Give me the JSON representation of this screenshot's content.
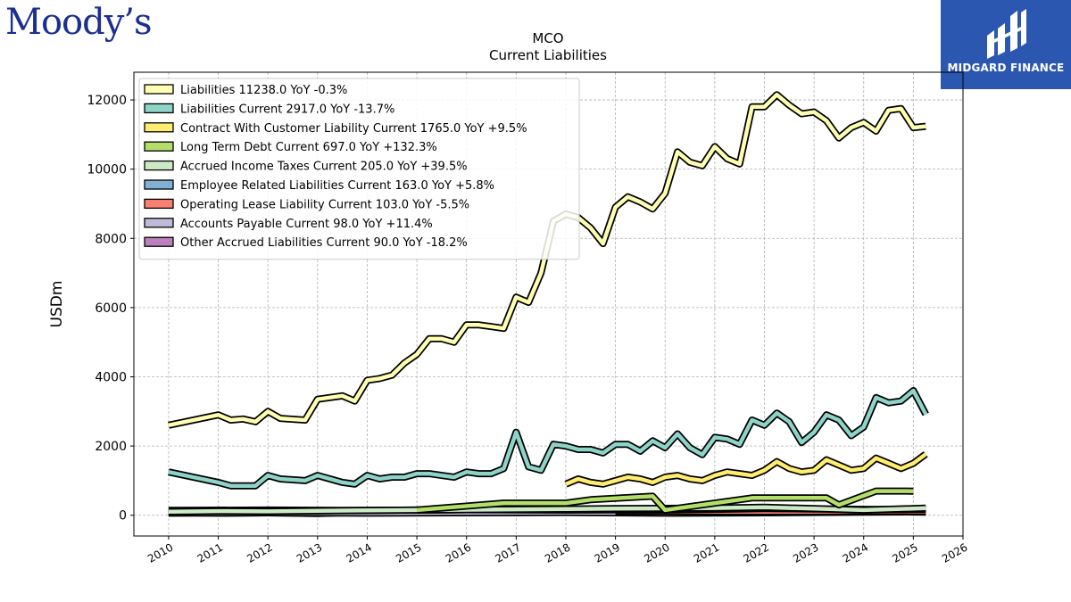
{
  "brand": {
    "left_logo": "Moody’s",
    "right_logo": "MIDGARD FINANCE",
    "accent": "#2c57b0",
    "left_logo_color": "#1a2f8f"
  },
  "chart_data": {
    "type": "line",
    "title": "MCO",
    "subtitle": "Current  Liabilities",
    "ylabel": "USDm",
    "xlabel": "",
    "xlim": [
      2009.3,
      2026.0
    ],
    "ylim": [
      -600,
      12800
    ],
    "xticks": [
      "2010",
      "2011",
      "2012",
      "2013",
      "2014",
      "2015",
      "2016",
      "2017",
      "2018",
      "2019",
      "2020",
      "2021",
      "2022",
      "2023",
      "2024",
      "2025",
      "2026"
    ],
    "yticks": [
      "0",
      "2000",
      "4000",
      "6000",
      "8000",
      "10000",
      "12000"
    ],
    "grid": true,
    "legend_position": "top-left",
    "series": [
      {
        "name": "Liabilities",
        "legend": "Liabilities  11238.0 YoY -0.3%",
        "color": "#ffffb3",
        "x": [
          2010.0,
          2011.0,
          2011.25,
          2011.5,
          2011.75,
          2012.0,
          2012.25,
          2012.75,
          2013.0,
          2013.5,
          2013.75,
          2014.0,
          2014.25,
          2014.5,
          2014.75,
          2015.0,
          2015.25,
          2015.5,
          2015.75,
          2016.0,
          2016.25,
          2016.5,
          2016.75,
          2017.0,
          2017.25,
          2017.5,
          2017.75,
          2018.0,
          2018.25,
          2018.5,
          2018.75,
          2019.0,
          2019.25,
          2019.5,
          2019.75,
          2020.0,
          2020.25,
          2020.5,
          2020.75,
          2021.0,
          2021.25,
          2021.5,
          2021.75,
          2022.0,
          2022.25,
          2022.5,
          2022.75,
          2023.0,
          2023.25,
          2023.5,
          2023.75,
          2024.0,
          2024.25,
          2024.5,
          2024.75,
          2025.0,
          2025.25
        ],
        "values": [
          2600,
          2900,
          2750,
          2780,
          2700,
          3000,
          2800,
          2750,
          3350,
          3450,
          3300,
          3900,
          3950,
          4050,
          4400,
          4650,
          5100,
          5100,
          5000,
          5500,
          5500,
          5450,
          5400,
          6300,
          6150,
          7000,
          8500,
          8700,
          8600,
          8300,
          7850,
          8900,
          9200,
          9050,
          8850,
          9300,
          10500,
          10200,
          10100,
          10650,
          10300,
          10150,
          11800,
          11800,
          12150,
          11850,
          11600,
          11650,
          11400,
          10900,
          11200,
          11350,
          11100,
          11700,
          11750,
          11200,
          11238
        ]
      },
      {
        "name": "Liabilities Current",
        "legend": "Liabilities Current  2917.0 YoY -13.7%",
        "color": "#8dd3c7",
        "x": [
          2010.0,
          2011.0,
          2011.25,
          2011.5,
          2011.75,
          2012.0,
          2012.25,
          2012.75,
          2013.0,
          2013.5,
          2013.75,
          2014.0,
          2014.25,
          2014.5,
          2014.75,
          2015.0,
          2015.25,
          2015.5,
          2015.75,
          2016.0,
          2016.25,
          2016.5,
          2016.75,
          2017.0,
          2017.25,
          2017.5,
          2017.75,
          2018.0,
          2018.25,
          2018.5,
          2018.75,
          2019.0,
          2019.25,
          2019.5,
          2019.75,
          2020.0,
          2020.25,
          2020.5,
          2020.75,
          2021.0,
          2021.25,
          2021.5,
          2021.75,
          2022.0,
          2022.25,
          2022.5,
          2022.75,
          2023.0,
          2023.25,
          2023.5,
          2023.75,
          2024.0,
          2024.25,
          2024.5,
          2024.75,
          2025.0,
          2025.25
        ],
        "values": [
          1250,
          950,
          850,
          850,
          850,
          1150,
          1050,
          1000,
          1150,
          950,
          900,
          1150,
          1050,
          1100,
          1100,
          1200,
          1200,
          1150,
          1100,
          1250,
          1200,
          1200,
          1350,
          2400,
          1400,
          1300,
          2050,
          2000,
          1900,
          1900,
          1800,
          2050,
          2050,
          1850,
          2150,
          1950,
          2350,
          1950,
          1750,
          2250,
          2200,
          2050,
          2750,
          2600,
          2950,
          2700,
          2100,
          2400,
          2900,
          2750,
          2300,
          2550,
          3400,
          3250,
          3300,
          3600,
          2917
        ]
      },
      {
        "name": "Contract With Customer Liability Current",
        "legend": "Contract With Customer Liability Current  1765.0 YoY +9.5%",
        "color": "#ffed6f",
        "x": [
          2018.0,
          2018.25,
          2018.5,
          2018.75,
          2019.0,
          2019.25,
          2019.5,
          2019.75,
          2020.0,
          2020.25,
          2020.5,
          2020.75,
          2021.0,
          2021.25,
          2021.5,
          2021.75,
          2022.0,
          2022.25,
          2022.5,
          2022.75,
          2023.0,
          2023.25,
          2023.5,
          2023.75,
          2024.0,
          2024.25,
          2024.5,
          2024.75,
          2025.0,
          2025.25
        ],
        "values": [
          900,
          1050,
          950,
          900,
          1000,
          1100,
          1050,
          950,
          1100,
          1150,
          1050,
          1000,
          1150,
          1250,
          1200,
          1150,
          1300,
          1550,
          1350,
          1250,
          1300,
          1600,
          1450,
          1300,
          1350,
          1650,
          1500,
          1350,
          1500,
          1765
        ]
      },
      {
        "name": "Long Term Debt Current",
        "legend": "Long Term Debt Current  697.0 YoY +132.3%",
        "color": "#b3de69",
        "x": [
          2015.0,
          2016.75,
          2018.0,
          2018.5,
          2019.75,
          2020.0,
          2021.75,
          2022.75,
          2023.25,
          2023.5,
          2024.25,
          2025.0
        ],
        "values": [
          150,
          350,
          350,
          450,
          550,
          150,
          500,
          500,
          500,
          300,
          700,
          697
        ]
      },
      {
        "name": "Accrued Income Taxes Current",
        "legend": "Accrued Income Taxes Current  205.0 YoY +39.5%",
        "color": "#ccebc5",
        "x": [
          2010.0,
          2011.0,
          2012.0,
          2013.0,
          2014.0,
          2015.0,
          2016.0,
          2017.0,
          2018.0,
          2019.0,
          2020.0,
          2021.0,
          2022.0,
          2023.0,
          2024.0,
          2025.25
        ],
        "values": [
          100,
          120,
          110,
          130,
          140,
          150,
          160,
          170,
          180,
          190,
          200,
          210,
          230,
          190,
          150,
          205
        ]
      },
      {
        "name": "Employee Related Liabilities Current",
        "legend": "Employee Related Liabilities Current  163.0 YoY +5.8%",
        "color": "#80b1d3",
        "x": [
          2010.0,
          2012.0,
          2014.0,
          2016.0,
          2018.0,
          2020.0,
          2021.0,
          2022.0,
          2023.0,
          2024.0,
          2025.25
        ],
        "values": [
          140,
          150,
          140,
          160,
          150,
          160,
          170,
          190,
          180,
          170,
          163
        ]
      },
      {
        "name": "Operating Lease Liability Current",
        "legend": "Operating Lease Liability Current  103.0 YoY -5.5%",
        "color": "#fb8072",
        "x": [
          2019.0,
          2020.0,
          2021.0,
          2022.0,
          2023.0,
          2024.0,
          2025.25
        ],
        "values": [
          110,
          110,
          100,
          100,
          100,
          110,
          103
        ]
      },
      {
        "name": "Accounts Payable Current",
        "legend": "Accounts Payable Current  98.0 YoY +11.4%",
        "color": "#bebada",
        "x": [
          2010.0,
          2012.0,
          2014.0,
          2016.0,
          2018.0,
          2020.0,
          2022.0,
          2024.0,
          2025.25
        ],
        "values": [
          60,
          70,
          60,
          70,
          80,
          60,
          70,
          90,
          98
        ]
      },
      {
        "name": "Other Accrued Liabilities Current",
        "legend": "Other Accrued Liabilities Current  90.0 YoY -18.2%",
        "color": "#bc80bd",
        "x": [
          2010.0,
          2011.0,
          2012.0,
          2013.0,
          2014.0,
          2015.0,
          2016.0,
          2017.0,
          2018.0,
          2019.0,
          2020.0,
          2021.0,
          2022.0,
          2023.0,
          2024.0,
          2025.25
        ],
        "values": [
          80,
          60,
          70,
          50,
          90,
          70,
          100,
          80,
          90,
          100,
          110,
          120,
          100,
          130,
          110,
          90
        ]
      }
    ]
  }
}
